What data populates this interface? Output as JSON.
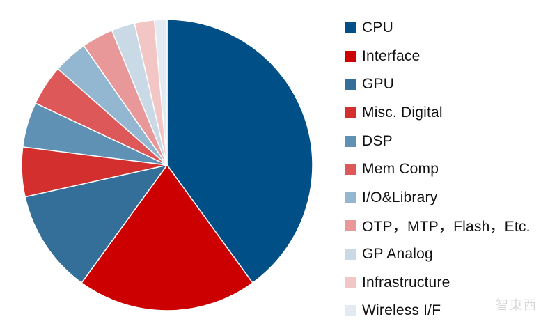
{
  "chart_data": {
    "type": "pie",
    "title": "",
    "legend_position": "right",
    "slices": [
      {
        "label": "CPU",
        "value": 40.0,
        "color": "#004f86"
      },
      {
        "label": "Interface",
        "value": 20.0,
        "color": "#cc0000"
      },
      {
        "label": "GPU",
        "value": 11.5,
        "color": "#336f99"
      },
      {
        "label": "Misc. Digital",
        "value": 5.5,
        "color": "#d42f2f"
      },
      {
        "label": "DSP",
        "value": 5.0,
        "color": "#5f91b4"
      },
      {
        "label": "Mem Comp",
        "value": 4.5,
        "color": "#dd5858"
      },
      {
        "label": "I/O&Library",
        "value": 3.8,
        "color": "#93b7d0"
      },
      {
        "label": "OTP，MTP，Flash，Etc.",
        "value": 3.5,
        "color": "#e89898"
      },
      {
        "label": "GP Analog",
        "value": 2.6,
        "color": "#c9d9e6"
      },
      {
        "label": "Infrastructure",
        "value": 2.2,
        "color": "#f3c6c6"
      },
      {
        "label": "Wireless I/F",
        "value": 1.4,
        "color": "#e3eaf1"
      }
    ]
  },
  "watermark": "智東西"
}
